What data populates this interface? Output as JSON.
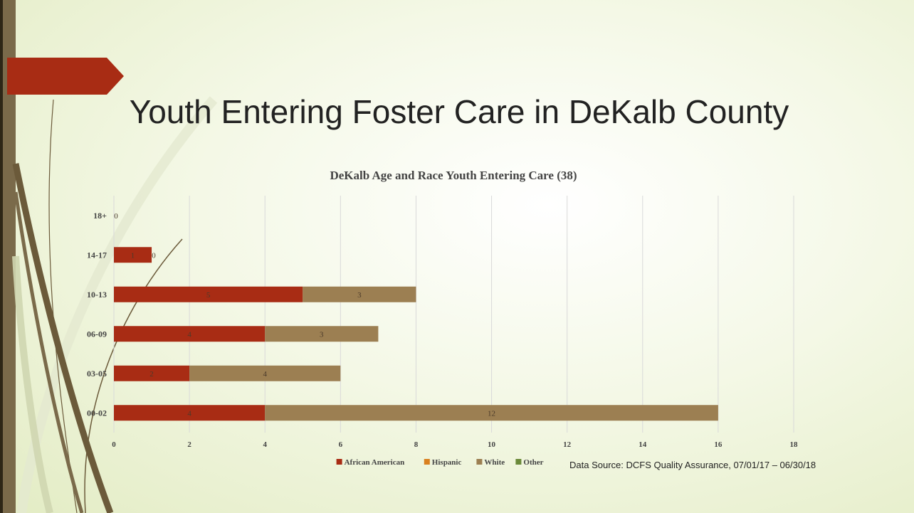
{
  "slide": {
    "title": "Youth Entering Foster Care in DeKalb County",
    "source": "Data Source: DCFS Quality Assurance, 07/01/17 – 06/30/18"
  },
  "colors": {
    "accent": "#a82c14",
    "sidebar": "#7a6a4a"
  },
  "chart_data": {
    "type": "bar",
    "orientation": "horizontal",
    "stacked": true,
    "title": "DeKalb Age and Race Youth Entering Care (38)",
    "categories": [
      "00-02",
      "03-05",
      "06-09",
      "10-13",
      "14-17",
      "18+"
    ],
    "series": [
      {
        "name": "African American",
        "color": "#a82c14",
        "values": [
          4,
          2,
          4,
          5,
          1,
          0
        ]
      },
      {
        "name": "Hispanic",
        "color": "#d9801f",
        "values": [
          0,
          0,
          0,
          0,
          0,
          0
        ]
      },
      {
        "name": "White",
        "color": "#9c7f52",
        "values": [
          12,
          4,
          3,
          3,
          0,
          0
        ]
      },
      {
        "name": "Other",
        "color": "#6b8a3a",
        "values": [
          0,
          0,
          0,
          0,
          0,
          0
        ]
      }
    ],
    "data_labels": [
      {
        "category": "18+",
        "series": "African American",
        "text": "0"
      },
      {
        "category": "14-17",
        "series": "African American",
        "text": "1"
      },
      {
        "category": "14-17",
        "series": "White",
        "text": "0"
      },
      {
        "category": "10-13",
        "series": "African American",
        "text": "5"
      },
      {
        "category": "10-13",
        "series": "White",
        "text": "3"
      },
      {
        "category": "06-09",
        "series": "African American",
        "text": "4"
      },
      {
        "category": "06-09",
        "series": "White",
        "text": "3"
      },
      {
        "category": "03-05",
        "series": "African American",
        "text": "2"
      },
      {
        "category": "03-05",
        "series": "White",
        "text": "4"
      },
      {
        "category": "00-02",
        "series": "African American",
        "text": "4"
      },
      {
        "category": "00-02",
        "series": "White",
        "text": "12"
      }
    ],
    "xlim": [
      0,
      18
    ],
    "xticks": [
      0,
      2,
      4,
      6,
      8,
      10,
      12,
      14,
      16,
      18
    ],
    "grid": true,
    "legend_position": "bottom"
  }
}
